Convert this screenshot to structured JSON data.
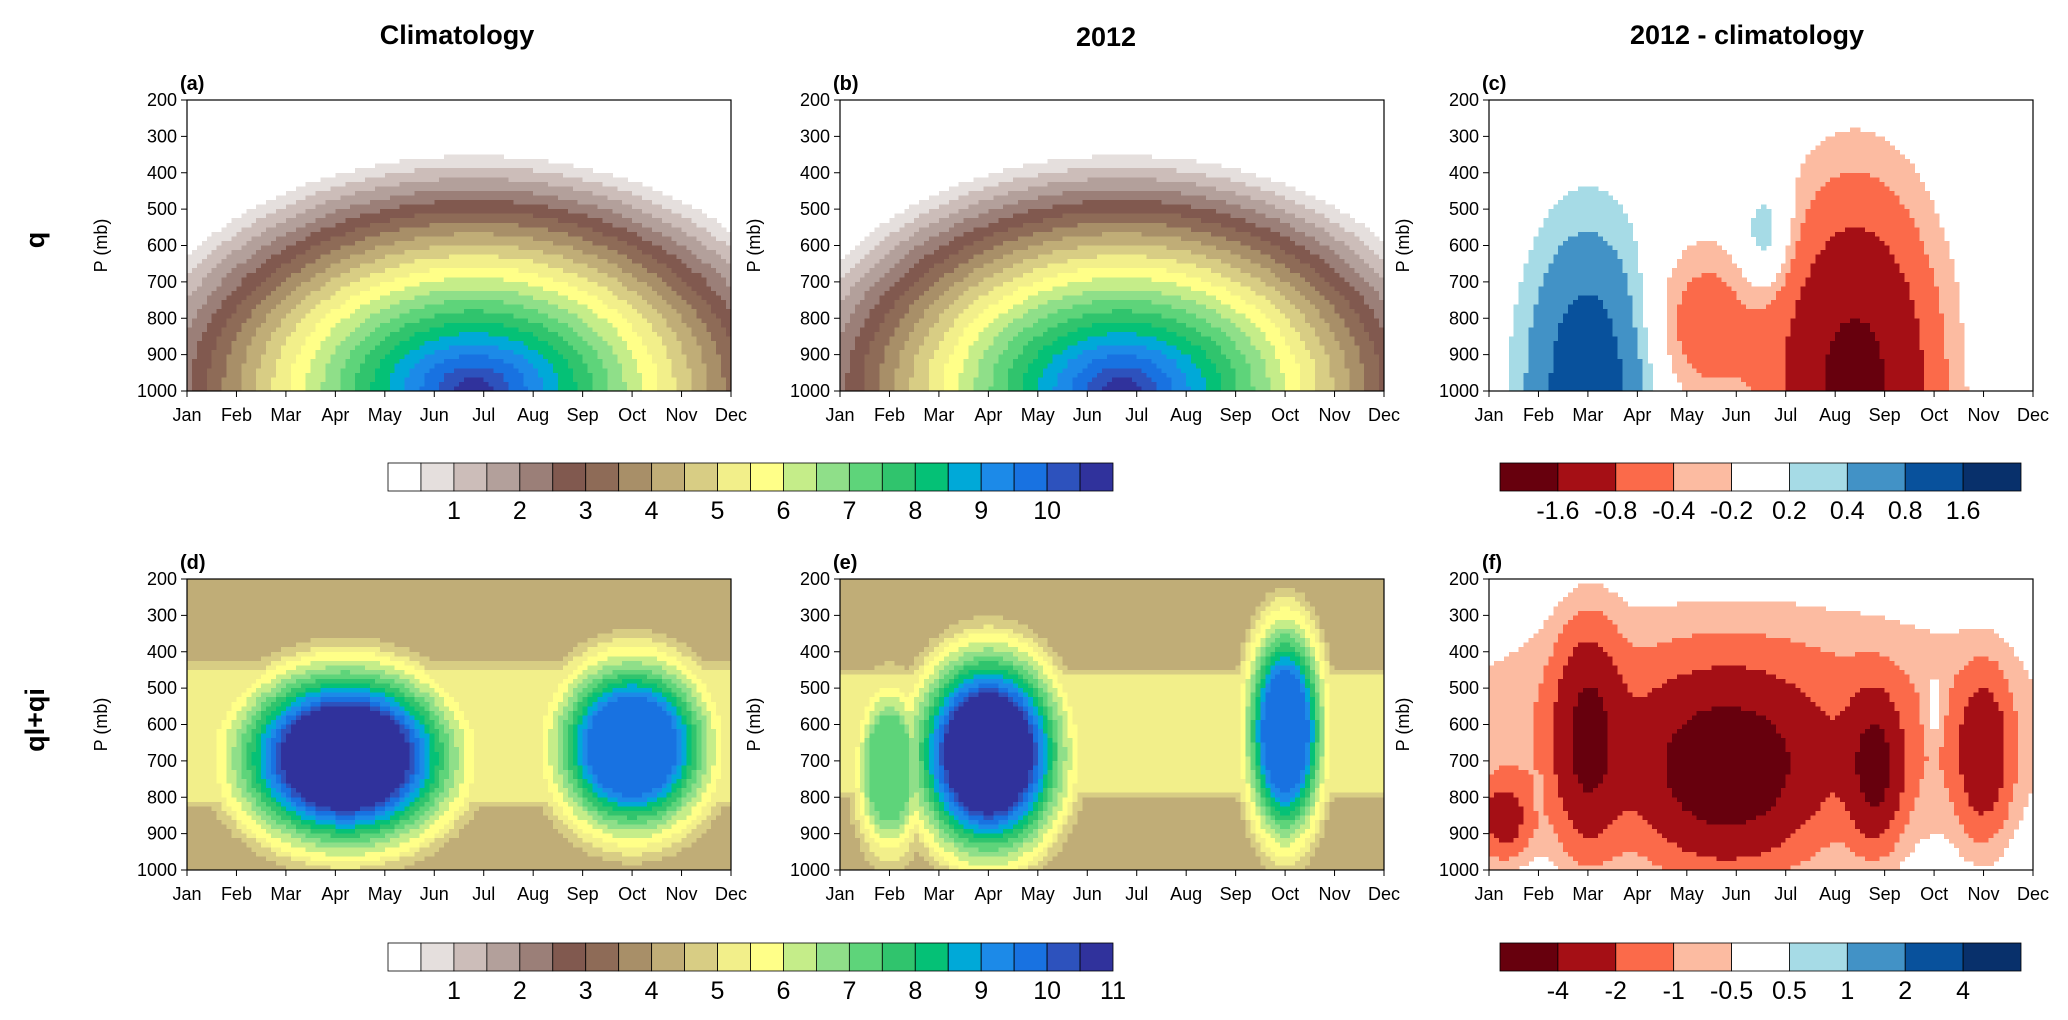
{
  "column_titles": [
    "Climatology",
    "2012",
    "2012 - climatology"
  ],
  "row_labels": [
    "q",
    "ql+qi"
  ],
  "months": [
    "Jan",
    "Feb",
    "Mar",
    "Apr",
    "May",
    "Jun",
    "Jul",
    "Aug",
    "Sep",
    "Oct",
    "Nov",
    "Dec"
  ],
  "pressure_ticks": [
    200,
    300,
    400,
    500,
    600,
    700,
    800,
    900,
    1000
  ],
  "y_axis_label": "P (mb)",
  "colorbars": {
    "q": {
      "colors": [
        "#ffffff",
        "#e5dfdd",
        "#ccbdb9",
        "#b3a09b",
        "#9b7f78",
        "#81594f",
        "#8e6b57",
        "#a88f68",
        "#c0ad77",
        "#d8cd84",
        "#f2ef8a",
        "#ffff88",
        "#c5ed89",
        "#8fdf89",
        "#5ed47a",
        "#30c46d",
        "#05c176",
        "#00a9d8",
        "#1c8ae8",
        "#1872e1",
        "#2d52bd",
        "#30329c"
      ],
      "labels": [
        "1",
        "2",
        "3",
        "4",
        "5",
        "6",
        "7",
        "8",
        "9",
        "10"
      ]
    },
    "q_diff": {
      "colors": [
        "#67000d",
        "#a50f15",
        "#fb6a4a",
        "#fcbba1",
        "#ffffff",
        "#a6dbe6",
        "#4292c6",
        "#08519c",
        "#08306b"
      ],
      "labels": [
        "-1.6",
        "-0.8",
        "-0.4",
        "-0.2",
        "0.2",
        "0.4",
        "0.8",
        "1.6"
      ]
    },
    "qlqi": {
      "colors": [
        "#ffffff",
        "#e5dfdd",
        "#ccbdb9",
        "#b3a09b",
        "#9b7f78",
        "#81594f",
        "#8e6b57",
        "#a88f68",
        "#c0ad77",
        "#d8cd84",
        "#f2ef8a",
        "#ffff88",
        "#c5ed89",
        "#8fdf89",
        "#5ed47a",
        "#30c46d",
        "#05c176",
        "#00a9d8",
        "#1c8ae8",
        "#1872e1",
        "#2d52bd",
        "#30329c"
      ],
      "labels": [
        "1",
        "2",
        "3",
        "4",
        "5",
        "6",
        "7",
        "8",
        "9",
        "10",
        "11"
      ]
    },
    "qlqi_diff": {
      "colors": [
        "#67000d",
        "#a50f15",
        "#fb6a4a",
        "#fcbba1",
        "#ffffff",
        "#a6dbe6",
        "#4292c6",
        "#08519c",
        "#08306b"
      ],
      "labels": [
        "-4",
        "-2",
        "-1",
        "-0.5",
        "0.5",
        "1",
        "2",
        "4"
      ]
    }
  },
  "chart_data": [
    {
      "panel": "(a)",
      "type": "heatmap",
      "x": [
        "Jan",
        "Feb",
        "Mar",
        "Apr",
        "May",
        "Jun",
        "Jul",
        "Aug",
        "Sep",
        "Oct",
        "Nov",
        "Dec"
      ],
      "ylim": [
        1000,
        200
      ],
      "ylabel": "P (mb)",
      "colorbar": "q",
      "features": [
        {
          "shape": "dome",
          "center_month": 6.8,
          "level_at_1000mb": 21,
          "top_pressure_mb": 360,
          "half_width_months": 7.0,
          "peak_level": 21
        }
      ]
    },
    {
      "panel": "(b)",
      "type": "heatmap",
      "x": [
        "Jan",
        "Feb",
        "Mar",
        "Apr",
        "May",
        "Jun",
        "Jul",
        "Aug",
        "Sep",
        "Oct",
        "Nov",
        "Dec"
      ],
      "ylim": [
        1000,
        200
      ],
      "ylabel": "P (mb)",
      "colorbar": "q",
      "features": [
        {
          "shape": "dome",
          "center_month": 6.7,
          "level_at_1000mb": 21,
          "top_pressure_mb": 360,
          "half_width_months": 6.8,
          "peak_level": 21
        }
      ]
    },
    {
      "panel": "(c)",
      "type": "heatmap",
      "x": [
        "Jan",
        "Feb",
        "Mar",
        "Apr",
        "May",
        "Jun",
        "Jul",
        "Aug",
        "Sep",
        "Oct",
        "Nov",
        "Dec"
      ],
      "ylim": [
        1000,
        200
      ],
      "ylabel": "P (mb)",
      "colorbar": "q_diff",
      "features": [
        {
          "month": 3.0,
          "pressure_mb": 1000,
          "half_width_months": 1.2,
          "half_height_mb": 420,
          "peak_value": 1.2
        },
        {
          "month": 8.4,
          "pressure_mb": 1000,
          "half_width_months": 1.5,
          "half_height_mb": 480,
          "peak_value": -1.9
        },
        {
          "month": 5.3,
          "pressure_mb": 820,
          "half_width_months": 1.1,
          "half_height_mb": 220,
          "peak_value": -0.6
        },
        {
          "month": 6.6,
          "pressure_mb": 580,
          "half_width_months": 0.55,
          "half_height_mb": 150,
          "peak_value": 0.5
        },
        {
          "month": 10.9,
          "pressure_mb": 800,
          "half_width_months": 0.2,
          "half_height_mb": 60,
          "peak_value": 0.25
        }
      ]
    },
    {
      "panel": "(d)",
      "type": "heatmap",
      "x": [
        "Jan",
        "Feb",
        "Mar",
        "Apr",
        "May",
        "Jun",
        "Jul",
        "Aug",
        "Sep",
        "Oct",
        "Nov",
        "Dec"
      ],
      "ylim": [
        1000,
        200
      ],
      "ylabel": "P (mb)",
      "colorbar": "qlqi",
      "features": [
        {
          "shape": "cloud_band",
          "bottom_pressure_mb": 920,
          "top_pressure_mb": 280
        },
        {
          "month": 4.2,
          "pressure_mb": 690,
          "half_width_months": 1.9,
          "half_height_mb": 210,
          "peak_level": 22
        },
        {
          "month": 10.0,
          "pressure_mb": 660,
          "half_width_months": 1.4,
          "half_height_mb": 210,
          "peak_level": 19
        }
      ]
    },
    {
      "panel": "(e)",
      "type": "heatmap",
      "x": [
        "Jan",
        "Feb",
        "Mar",
        "Apr",
        "May",
        "Jun",
        "Jul",
        "Aug",
        "Sep",
        "Oct",
        "Nov",
        "Dec"
      ],
      "ylim": [
        1000,
        200
      ],
      "ylabel": "P (mb)",
      "colorbar": "qlqi",
      "features": [
        {
          "shape": "cloud_band",
          "bottom_pressure_mb": 900,
          "top_pressure_mb": 300
        },
        {
          "month": 4.0,
          "pressure_mb": 680,
          "half_width_months": 1.3,
          "half_height_mb": 240,
          "peak_level": 22
        },
        {
          "month": 10.0,
          "pressure_mb": 620,
          "half_width_months": 0.7,
          "half_height_mb": 260,
          "peak_level": 19
        },
        {
          "month": 2.0,
          "pressure_mb": 720,
          "half_width_months": 0.6,
          "half_height_mb": 200,
          "peak_level": 14
        }
      ]
    },
    {
      "panel": "(f)",
      "type": "heatmap",
      "x": [
        "Jan",
        "Feb",
        "Mar",
        "Apr",
        "May",
        "Jun",
        "Jul",
        "Aug",
        "Sep",
        "Oct",
        "Nov",
        "Dec"
      ],
      "ylim": [
        1000,
        200
      ],
      "ylabel": "P (mb)",
      "colorbar": "qlqi_diff",
      "features": [
        {
          "month": 6.2,
          "pressure_mb": 620,
          "half_width_months": 5.8,
          "half_height_mb": 330,
          "peak_value": -1.5
        },
        {
          "month": 3.0,
          "pressure_mb": 640,
          "half_width_months": 0.6,
          "half_height_mb": 260,
          "peak_value": -4.0
        },
        {
          "month": 5.8,
          "pressure_mb": 730,
          "half_width_months": 1.6,
          "half_height_mb": 220,
          "peak_value": -5.0
        },
        {
          "month": 8.8,
          "pressure_mb": 720,
          "half_width_months": 0.5,
          "half_height_mb": 180,
          "peak_value": -4.2
        },
        {
          "month": 11.0,
          "pressure_mb": 680,
          "half_width_months": 0.5,
          "half_height_mb": 200,
          "peak_value": -3.0
        },
        {
          "month": 1.3,
          "pressure_mb": 860,
          "half_width_months": 0.5,
          "half_height_mb": 100,
          "peak_value": -2.6
        },
        {
          "month": 10.0,
          "pressure_mb": 560,
          "half_width_months": 0.18,
          "half_height_mb": 80,
          "peak_value": 1.0
        },
        {
          "month": 2.0,
          "pressure_mb": 790,
          "half_width_months": 0.12,
          "half_height_mb": 40,
          "peak_value": 0.7
        }
      ]
    }
  ]
}
